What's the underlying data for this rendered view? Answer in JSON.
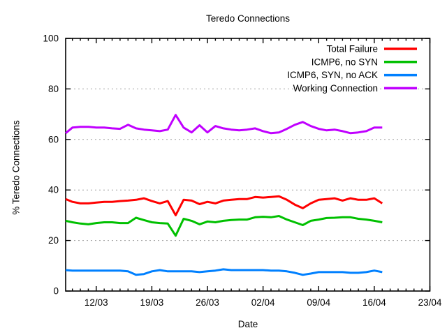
{
  "chart_data": {
    "type": "line",
    "title": "Teredo Connections",
    "xlabel": "Date",
    "ylabel": "% Teredo Connections",
    "ylim": [
      0,
      100
    ],
    "y_ticks": [
      0,
      20,
      40,
      60,
      80,
      100
    ],
    "x_tick_labels": [
      "12/03",
      "19/03",
      "26/03",
      "02/04",
      "09/04",
      "16/04",
      "23/04"
    ],
    "x_tick_days": [
      0,
      7,
      14,
      21,
      28,
      35,
      42
    ],
    "x_minor_tick_interval_days": 1,
    "grid": "horizontal-dotted",
    "legend_position": "top-right-inside",
    "dates": [
      "08/03",
      "09/03",
      "10/03",
      "11/03",
      "12/03",
      "13/03",
      "14/03",
      "15/03",
      "16/03",
      "17/03",
      "18/03",
      "19/03",
      "20/03",
      "21/03",
      "22/03",
      "23/03",
      "24/03",
      "25/03",
      "26/03",
      "27/03",
      "28/03",
      "29/03",
      "30/03",
      "31/03",
      "01/04",
      "02/04",
      "03/04",
      "04/04",
      "05/04",
      "06/04",
      "07/04",
      "08/04",
      "09/04",
      "10/04",
      "11/04",
      "12/04",
      "13/04",
      "14/04",
      "15/04",
      "16/04",
      "17/04"
    ],
    "x_days": [
      -3.85,
      -3,
      -2,
      -1,
      0,
      1,
      2,
      3,
      4,
      5,
      6,
      7,
      8,
      9,
      10,
      11,
      12,
      13,
      14,
      15,
      16,
      17,
      18,
      19,
      20,
      21,
      22,
      23,
      24,
      25,
      26,
      27,
      28,
      29,
      30,
      31,
      32,
      33,
      34,
      35,
      36
    ],
    "series": [
      {
        "name": "Total Failure",
        "color": "#ff0000",
        "values": [
          36.4,
          35.3,
          34.7,
          34.7,
          35.0,
          35.3,
          35.3,
          35.6,
          35.8,
          36.1,
          36.7,
          35.6,
          34.7,
          35.6,
          30.0,
          36.1,
          35.8,
          34.4,
          35.3,
          34.7,
          35.8,
          36.1,
          36.4,
          36.4,
          37.2,
          37.0,
          37.2,
          37.5,
          36.1,
          34.2,
          32.8,
          34.7,
          36.1,
          36.4,
          36.7,
          35.8,
          36.7,
          36.1,
          36.1,
          36.7,
          34.7
        ]
      },
      {
        "name": "ICMP6, no SYN",
        "color": "#00c000",
        "values": [
          27.8,
          27.2,
          26.7,
          26.4,
          26.9,
          27.2,
          27.2,
          26.9,
          26.9,
          29.0,
          28.1,
          27.2,
          26.9,
          26.7,
          21.9,
          28.6,
          27.8,
          26.4,
          27.5,
          27.2,
          27.8,
          28.1,
          28.3,
          28.3,
          29.2,
          29.4,
          29.2,
          29.7,
          28.3,
          27.2,
          26.1,
          27.8,
          28.3,
          28.9,
          29.0,
          29.2,
          29.2,
          28.6,
          28.3,
          27.8,
          27.2
        ]
      },
      {
        "name": "ICMP6, SYN, no ACK",
        "color": "#0080ff",
        "values": [
          8.3,
          8.1,
          8.1,
          8.1,
          8.1,
          8.1,
          8.1,
          8.1,
          7.8,
          6.4,
          6.7,
          7.8,
          8.3,
          7.8,
          7.8,
          7.8,
          7.8,
          7.5,
          7.8,
          8.1,
          8.6,
          8.3,
          8.3,
          8.3,
          8.3,
          8.3,
          8.1,
          8.1,
          7.8,
          7.2,
          6.4,
          6.9,
          7.5,
          7.5,
          7.5,
          7.5,
          7.2,
          7.2,
          7.5,
          8.1,
          7.5
        ]
      },
      {
        "name": "Working Connection",
        "color": "#c000ff",
        "values": [
          62.5,
          64.7,
          65.0,
          65.0,
          64.7,
          64.7,
          64.4,
          64.2,
          65.8,
          64.4,
          63.9,
          63.6,
          63.3,
          63.9,
          69.7,
          64.7,
          62.8,
          65.6,
          62.8,
          65.3,
          64.4,
          63.9,
          63.6,
          63.9,
          64.4,
          63.3,
          62.5,
          62.8,
          64.2,
          65.8,
          66.9,
          65.3,
          64.2,
          63.6,
          63.9,
          63.3,
          62.5,
          62.8,
          63.3,
          64.7,
          64.7
        ]
      }
    ]
  }
}
